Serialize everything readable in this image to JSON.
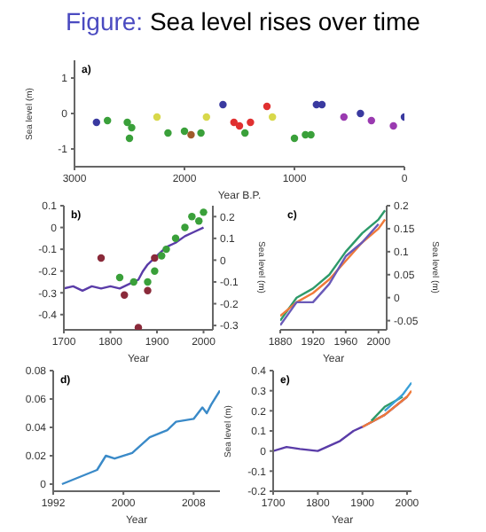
{
  "chart_data": [
    {
      "type": "scatter",
      "title": "Figure: Sea level rises over time",
      "annotations": [
        "a)"
      ],
      "xlabel": "Year B.P.",
      "ylabel": "Sea level (m)",
      "xlim": [
        3000,
        0
      ],
      "xticks": [
        3000,
        2000,
        1000,
        0
      ],
      "ylim": [
        -1.5,
        1.5
      ],
      "yticks": [
        -1,
        0,
        1
      ],
      "grid": false,
      "series": [
        {
          "x": [
            2800,
            2700,
            2520,
            2500,
            2480,
            2250,
            2150,
            2000,
            1940,
            1850,
            1800,
            1650,
            1550,
            1500,
            1450,
            1400,
            1250,
            1200,
            1000,
            900,
            850,
            800,
            750,
            550,
            400,
            300,
            100,
            0
          ],
          "values": [
            -0.25,
            -0.2,
            -0.25,
            -0.7,
            -0.4,
            -0.1,
            -0.55,
            -0.5,
            -0.6,
            -0.55,
            -0.1,
            0.25,
            -0.25,
            -0.35,
            -0.55,
            -0.25,
            0.2,
            -0.1,
            -0.7,
            -0.6,
            -0.6,
            0.25,
            0.25,
            -0.1,
            0,
            -0.2,
            -0.35,
            -0.1
          ],
          "colors": [
            "#3a3aa0",
            "#3aa03a",
            "#3aa03a",
            "#3aa03a",
            "#3aa03a",
            "#d8d84a",
            "#3aa03a",
            "#3aa03a",
            "#a05a2a",
            "#3aa03a",
            "#d8d84a",
            "#3a3aa0",
            "#e03030",
            "#e03030",
            "#3aa03a",
            "#e03030",
            "#e03030",
            "#d8d84a",
            "#3aa03a",
            "#3aa03a",
            "#3aa03a",
            "#3a3aa0",
            "#3a3aa0",
            "#9a3ab0",
            "#3a3aa0",
            "#9a3ab0",
            "#9a3ab0",
            "#3a3aa0"
          ]
        }
      ]
    },
    {
      "type": "line",
      "annotations": [
        "b)"
      ],
      "xlabel": "Year",
      "y2label": "Sea level (m)",
      "xlim": [
        1700,
        2020
      ],
      "xticks": [
        1700,
        1800,
        1900,
        2000
      ],
      "ylim": [
        -0.47,
        0.1
      ],
      "yticks": [
        -0.4,
        -0.3,
        -0.2,
        -0.1,
        0,
        0.1
      ],
      "y2lim": [
        -0.32,
        0.25
      ],
      "y2ticks": [
        -0.3,
        -0.2,
        -0.1,
        0,
        0.1,
        0.2
      ],
      "grid": false,
      "series": [
        {
          "color": "#5a3ca8",
          "x": [
            1700,
            1720,
            1740,
            1760,
            1780,
            1800,
            1820,
            1840,
            1860,
            1870,
            1880,
            1900,
            1920,
            1940,
            1960,
            1980,
            2000
          ],
          "values": [
            -0.28,
            -0.27,
            -0.29,
            -0.27,
            -0.28,
            -0.27,
            -0.28,
            -0.26,
            -0.24,
            -0.2,
            -0.17,
            -0.13,
            -0.09,
            -0.07,
            -0.04,
            -0.02,
            0
          ]
        },
        {
          "type": "scatter",
          "color": "#8a2a3a",
          "x": [
            1780,
            1830,
            1860,
            1880,
            1895
          ],
          "values": [
            -0.14,
            -0.31,
            -0.46,
            -0.29,
            -0.14
          ]
        },
        {
          "type": "scatter",
          "axis": "y2",
          "color": "#3aa03a",
          "x": [
            1820,
            1850,
            1880,
            1895,
            1910,
            1920,
            1940,
            1960,
            1975,
            1990,
            2000
          ],
          "values": [
            -0.08,
            -0.1,
            -0.1,
            -0.05,
            0.02,
            0.05,
            0.1,
            0.15,
            0.2,
            0.18,
            0.22
          ]
        }
      ]
    },
    {
      "type": "line",
      "annotations": [
        "c)"
      ],
      "xlabel": "Year",
      "y2label": "Sea level (m)",
      "xlim": [
        1880,
        2010
      ],
      "xticks": [
        1880,
        1920,
        1960,
        2000
      ],
      "y2lim": [
        -0.07,
        0.2
      ],
      "y2ticks": [
        -0.05,
        0,
        0.05,
        0.1,
        0.15,
        0.2
      ],
      "grid": false,
      "series": [
        {
          "axis": "y2",
          "color": "#2e9a6a",
          "x": [
            1880,
            1900,
            1920,
            1940,
            1960,
            1980,
            2000,
            2008
          ],
          "values": [
            -0.05,
            0,
            0.02,
            0.05,
            0.1,
            0.14,
            0.17,
            0.19
          ]
        },
        {
          "axis": "y2",
          "color": "#f07a3a",
          "x": [
            1880,
            1900,
            1920,
            1940,
            1960,
            1980,
            2000,
            2008
          ],
          "values": [
            -0.04,
            -0.01,
            0.01,
            0.04,
            0.08,
            0.12,
            0.15,
            0.17
          ]
        },
        {
          "axis": "y2",
          "color": "#6a5ab8",
          "x": [
            1880,
            1900,
            1920,
            1940,
            1960,
            1980,
            2000
          ],
          "values": [
            -0.06,
            -0.01,
            -0.01,
            0.03,
            0.09,
            0.12,
            0.16
          ]
        }
      ]
    },
    {
      "type": "line",
      "annotations": [
        "d)"
      ],
      "xlabel": "Year",
      "xlim": [
        1992,
        2011
      ],
      "xticks": [
        1992,
        2000,
        2008
      ],
      "ylim": [
        -0.005,
        0.08
      ],
      "yticks": [
        0,
        0.02,
        0.04,
        0.06,
        0.08
      ],
      "grid": false,
      "series": [
        {
          "color": "#3a8ac8",
          "x": [
            1993,
            1995,
            1997,
            1998,
            1999,
            2001,
            2003,
            2005,
            2006,
            2008,
            2009,
            2009.5,
            2010,
            2011
          ],
          "values": [
            0,
            0.005,
            0.01,
            0.02,
            0.018,
            0.022,
            0.033,
            0.038,
            0.044,
            0.046,
            0.054,
            0.05,
            0.056,
            0.066
          ]
        }
      ]
    },
    {
      "type": "line",
      "annotations": [
        "e)"
      ],
      "xlabel": "Year",
      "ylabel": "Sea level (m)",
      "xlim": [
        1700,
        2010
      ],
      "xticks": [
        1700,
        1800,
        1900,
        2000
      ],
      "ylim": [
        -0.2,
        0.4
      ],
      "yticks": [
        -0.2,
        -0.1,
        0,
        0.1,
        0.2,
        0.3,
        0.4
      ],
      "grid": false,
      "series": [
        {
          "color": "#5a3ca8",
          "x": [
            1700,
            1730,
            1760,
            1800,
            1830,
            1850,
            1880,
            1900,
            1950,
            2000
          ],
          "values": [
            0,
            0.02,
            0.01,
            0,
            0.03,
            0.05,
            0.1,
            0.12,
            0.18,
            0.27
          ]
        },
        {
          "color": "#f07a3a",
          "x": [
            1900,
            1950,
            2000,
            2010
          ],
          "values": [
            0.12,
            0.18,
            0.27,
            0.3
          ]
        },
        {
          "color": "#2e9a6a",
          "x": [
            1920,
            1950,
            1990
          ],
          "values": [
            0.15,
            0.22,
            0.27
          ]
        },
        {
          "color": "#3aa0d8",
          "x": [
            1950,
            1990,
            2010
          ],
          "values": [
            0.2,
            0.28,
            0.34
          ]
        }
      ]
    }
  ]
}
